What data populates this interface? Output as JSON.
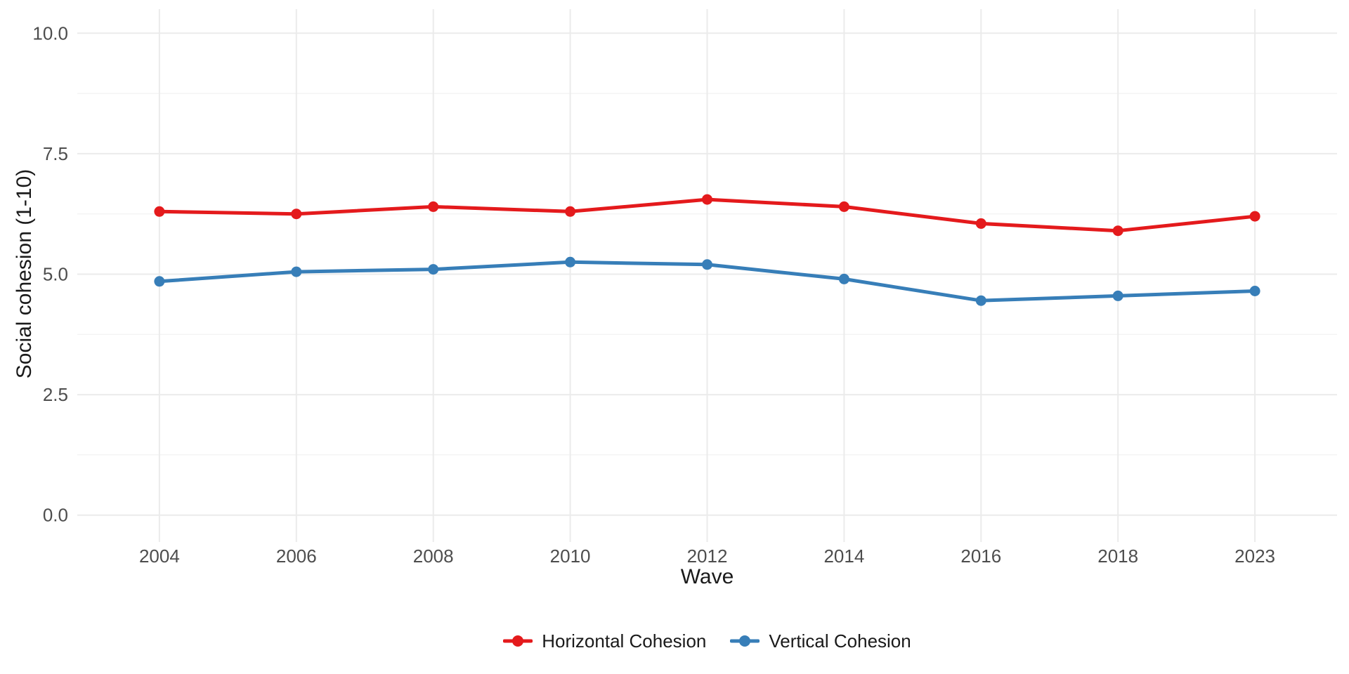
{
  "chart_data": {
    "type": "line",
    "title": "",
    "xlabel": "Wave",
    "ylabel": "Social cohesion (1-10)",
    "x_categories": [
      "2004",
      "2006",
      "2008",
      "2010",
      "2012",
      "2014",
      "2016",
      "2018",
      "2023"
    ],
    "y_ticks": [
      0.0,
      2.5,
      5.0,
      7.5,
      10.0
    ],
    "y_tick_labels": [
      "0.0",
      "2.5",
      "5.0",
      "7.5",
      "10.0"
    ],
    "y_minor_ticks": [
      1.25,
      3.75,
      6.25,
      8.75
    ],
    "ylim": [
      0,
      10
    ],
    "grid": true,
    "legend_position": "bottom",
    "series": [
      {
        "name": "Horizontal Cohesion",
        "color": "#E41A1C",
        "values": [
          6.3,
          6.25,
          6.4,
          6.3,
          6.55,
          6.4,
          6.05,
          5.9,
          6.2
        ]
      },
      {
        "name": "Vertical Cohesion",
        "color": "#377EB8",
        "values": [
          4.85,
          5.05,
          5.1,
          5.25,
          5.2,
          4.9,
          4.45,
          4.55,
          4.65
        ]
      }
    ],
    "colors": {
      "background": "#FFFFFF",
      "grid_major": "#EBEBEB",
      "grid_minor": "#EFEFEF",
      "tick_label": "#4D4D4D",
      "axis_title": "#1A1A1A",
      "legend_text": "#1A1A1A"
    }
  }
}
